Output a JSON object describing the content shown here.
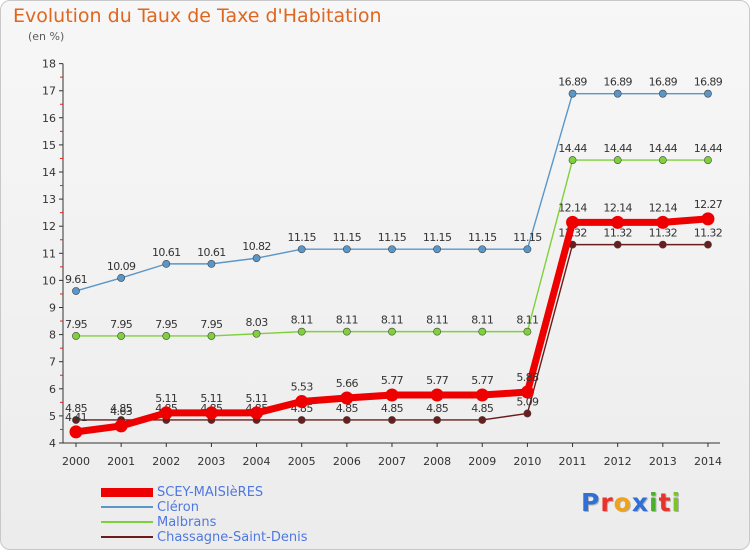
{
  "title": "Evolution du Taux de Taxe d'Habitation",
  "subtitle": "(en %)",
  "logo": {
    "text": "Proxiti",
    "letters": [
      "P",
      "r",
      "o",
      "x",
      "i",
      "t",
      "i"
    ],
    "colors": [
      "#2f6fd6",
      "#e8332b",
      "#f0a21a",
      "#2f6fd6",
      "#4caf2c",
      "#e8332b",
      "#7cc42c"
    ]
  },
  "chart_data": {
    "type": "line",
    "categories": [
      "2000",
      "2001",
      "2002",
      "2003",
      "2004",
      "2005",
      "2006",
      "2007",
      "2008",
      "2009",
      "2010",
      "2011",
      "2012",
      "2013",
      "2014"
    ],
    "ylim": [
      4,
      18
    ],
    "yticks": [
      "4",
      "5",
      "6",
      "7",
      "8",
      "9",
      "10",
      "11",
      "12",
      "13",
      "14",
      "15",
      "16",
      "17",
      "18"
    ],
    "grid": false,
    "legend_position": "bottom-left",
    "series": [
      {
        "name": "Chassagne-Saint-Denis",
        "color": "#6b1c1c",
        "values": [
          4.85,
          4.85,
          4.85,
          4.85,
          4.85,
          4.85,
          4.85,
          4.85,
          4.85,
          4.85,
          5.09,
          11.32,
          11.32,
          11.32,
          11.32
        ],
        "labels": [
          "4.85",
          "4.85",
          "4.85",
          "4.85",
          "4.85",
          "4.85",
          "4.85",
          "4.85",
          "4.85",
          "4.85",
          "5.09",
          "11.32",
          "11.32",
          "11.32",
          "11.32"
        ]
      },
      {
        "name": "Malbrans",
        "color": "#7fd13b",
        "values": [
          7.95,
          7.95,
          7.95,
          7.95,
          8.03,
          8.11,
          8.11,
          8.11,
          8.11,
          8.11,
          8.11,
          14.44,
          14.44,
          14.44,
          14.44
        ],
        "labels": [
          "7.95",
          "7.95",
          "7.95",
          "7.95",
          "8.03",
          "8.11",
          "8.11",
          "8.11",
          "8.11",
          "8.11",
          "8.11",
          "14.44",
          "14.44",
          "14.44",
          "14.44"
        ]
      },
      {
        "name": "Cléron",
        "color": "#5a96c8",
        "values": [
          9.61,
          10.09,
          10.61,
          10.61,
          10.82,
          11.15,
          11.15,
          11.15,
          11.15,
          11.15,
          11.15,
          16.89,
          16.89,
          16.89,
          16.89
        ],
        "labels": [
          "9.61",
          "10.09",
          "10.61",
          "10.61",
          "10.82",
          "11.15",
          "11.15",
          "11.15",
          "11.15",
          "11.15",
          "11.15",
          "16.89",
          "16.89",
          "16.89",
          "16.89"
        ]
      },
      {
        "name": "SCEY-MAISIèRES",
        "color": "#ee0000",
        "values": [
          4.41,
          4.63,
          5.11,
          5.11,
          5.11,
          5.53,
          5.66,
          5.77,
          5.77,
          5.77,
          5.88,
          12.14,
          12.14,
          12.14,
          12.27
        ],
        "labels": [
          "4.41",
          "4.63",
          "5.11",
          "5.11",
          "5.11",
          "5.53",
          "5.66",
          "5.77",
          "5.77",
          "5.77",
          "5.88",
          "12.14",
          "12.14",
          "12.14",
          "12.27"
        ]
      }
    ]
  }
}
